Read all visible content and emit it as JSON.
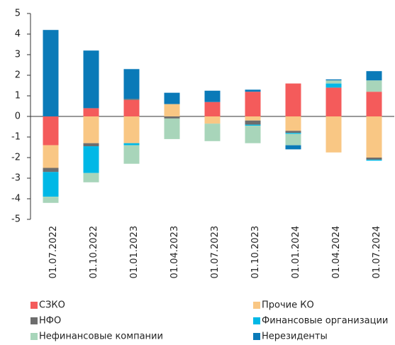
{
  "chart_data": {
    "type": "stacked-bar",
    "categories": [
      "01.07.2022",
      "01.10.2022",
      "01.01.2023",
      "01.04.2023",
      "01.07.2023",
      "01.10.2023",
      "01.01.2024",
      "01.04.2024",
      "01.07.2024"
    ],
    "series": [
      {
        "name": "СЗКО",
        "color": "#f45b5b",
        "values": [
          -1.4,
          0.4,
          0.8,
          0,
          0.7,
          1.2,
          1.6,
          1.4,
          1.2
        ]
      },
      {
        "name": "Прочие КО",
        "color": "#f9c784",
        "values": [
          -1.1,
          -1.3,
          -1.3,
          0.6,
          -0.35,
          -0.2,
          -0.7,
          -1.75,
          -2.0
        ]
      },
      {
        "name": "НФО",
        "color": "#6d6d6d",
        "values": [
          -0.2,
          -0.15,
          0.05,
          -0.1,
          0,
          -0.2,
          -0.1,
          0,
          -0.1
        ]
      },
      {
        "name": "Финансовые организации",
        "color": "#00b8e6",
        "values": [
          -1.2,
          -1.3,
          -0.1,
          0,
          0,
          -0.05,
          -0.05,
          0.2,
          -0.05
        ]
      },
      {
        "name": "Нефинансовые компании",
        "color": "#a8d5ba",
        "values": [
          -0.3,
          -0.45,
          -0.9,
          -1.0,
          -0.85,
          -0.85,
          -0.55,
          0.15,
          0.55
        ]
      },
      {
        "name": "Нерезиденты",
        "color": "#0a7ab8",
        "values": [
          4.2,
          2.8,
          1.45,
          0.55,
          0.55,
          0.1,
          -0.2,
          0.05,
          0.45
        ]
      }
    ],
    "ylim": [
      -5,
      5
    ],
    "yticks": [
      -5,
      -4,
      -3,
      -2,
      -1,
      0,
      1,
      2,
      3,
      4,
      5
    ]
  }
}
